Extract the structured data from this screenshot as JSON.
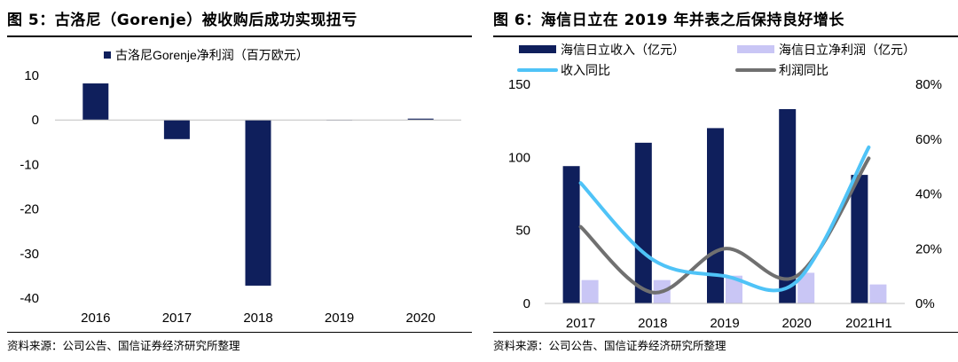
{
  "colors": {
    "navy": "#0f1f5c",
    "lavender": "#c9c6f5",
    "sky": "#4fc3f7",
    "gray": "#707070",
    "axis": "#bfbfbf"
  },
  "left": {
    "title": "图 5：古洛尼（Gorenje）被收购后成功实现扭亏",
    "source": "资料来源：公司公告、国信证券经济研究所整理"
  },
  "right": {
    "title": "图 6：海信日立在 2019 年并表之后保持良好增长",
    "source": "资料来源：公司公告、国信证券经济研究所整理"
  },
  "chart_data": [
    {
      "type": "bar",
      "title": "",
      "categories": [
        "2016",
        "2017",
        "2018",
        "2019",
        "2020"
      ],
      "series": [
        {
          "name": "古洛尼Gorenje净利润（百万欧元）",
          "values": [
            8.2,
            -4.3,
            -37.2,
            0,
            0.3
          ]
        }
      ],
      "ylim": [
        -40,
        10
      ],
      "yticks": [
        "10",
        "0",
        "-10",
        "-20",
        "-30",
        "-40"
      ],
      "legend": "top",
      "grid": false
    },
    {
      "type": "bar",
      "title": "",
      "categories": [
        "2017",
        "2018",
        "2019",
        "2020",
        "2021H1"
      ],
      "series": [
        {
          "name": "海信日立收入（亿元）",
          "type": "bar",
          "axis": "left",
          "values": [
            94,
            110,
            120,
            133,
            88
          ]
        },
        {
          "name": "海信日立净利润（亿元）",
          "type": "bar",
          "axis": "left",
          "values": [
            16,
            16,
            19,
            21,
            13
          ]
        },
        {
          "name": "收入同比",
          "type": "line",
          "axis": "right",
          "values": [
            44,
            16,
            10,
            8,
            57
          ]
        },
        {
          "name": "利润同比",
          "type": "line",
          "axis": "right",
          "values": [
            28,
            4,
            20,
            10,
            53
          ]
        }
      ],
      "ylim_left": [
        0,
        150
      ],
      "ylim_right": [
        0,
        80
      ],
      "yticks_left": [
        "150",
        "100",
        "50",
        "0"
      ],
      "yticks_right": [
        "80%",
        "60%",
        "40%",
        "20%",
        "0%"
      ],
      "legend": "top",
      "grid": false
    }
  ]
}
